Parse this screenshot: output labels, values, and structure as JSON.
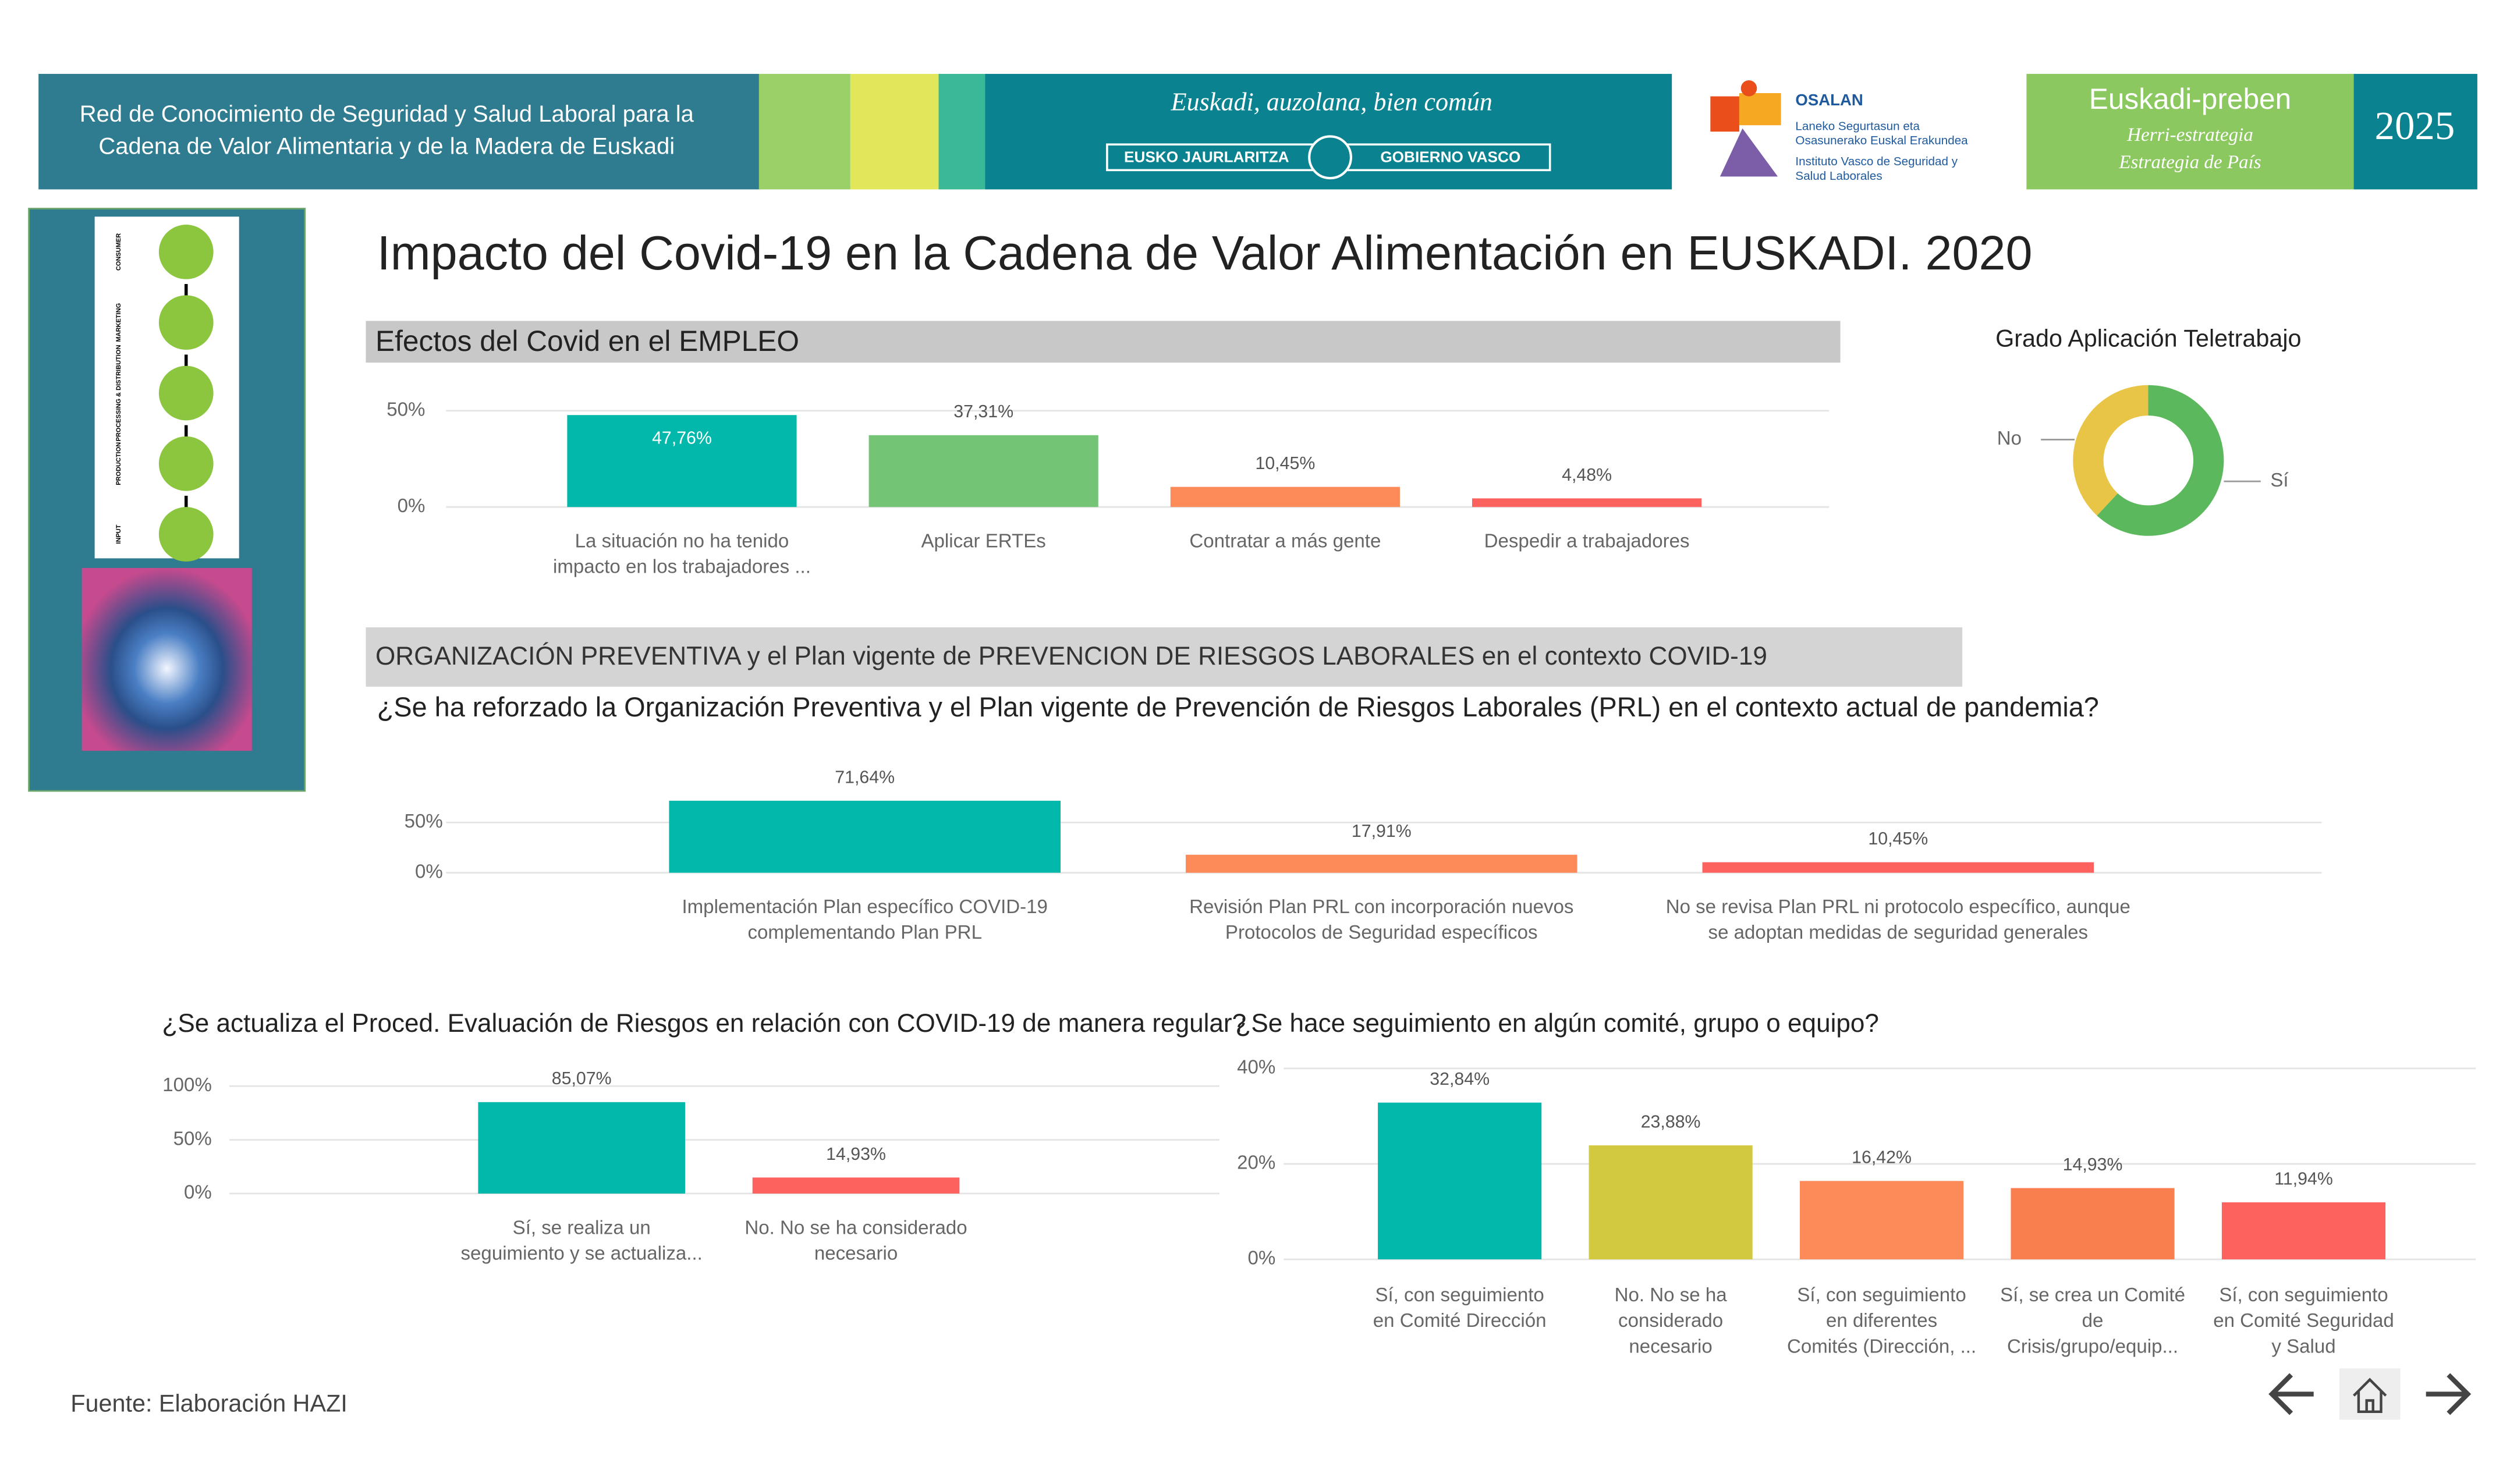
{
  "header": {
    "network_lines": [
      "Red de Conocimiento de Seguridad y Salud Laboral para la",
      "Cadena de Valor Alimentaria y de la Madera de Euskadi"
    ],
    "motto": "Euskadi, auzolana, bien común",
    "gov_left": "EUSKO JAURLARITZA",
    "gov_right": "GOBIERNO VASCO",
    "osalan": "OSALAN",
    "osalan_lines": [
      "Laneko Segurtasun eta",
      "Osasunerako Euskal Erakundea",
      "Instituto Vasco de Seguridad y",
      "Salud Laborales"
    ],
    "strategy": "Euskadi-preben",
    "strategy_lines": [
      "Herri-estrategia",
      "Estrategia de País"
    ],
    "year": "2025"
  },
  "side_image": {
    "stages": [
      "CONSUMER",
      "MARKETING",
      "PROCESSING & DISTRIBUTION",
      "PRODUCTION",
      "INPUT"
    ]
  },
  "title": "Impacto del Covid-19 en la Cadena de Valor Alimentación en EUSKADI. 2020",
  "section_heading": "ORGANIZACIÓN PREVENTIVA y el Plan vigente de PREVENCION DE RIESGOS LABORALES en el contexto COVID-19",
  "footer": "Fuente: Elaboración HAZI",
  "chart_data": [
    {
      "type": "bar",
      "title": "Efectos del Covid en el EMPLEO",
      "categories": [
        [
          "La situación no ha tenido",
          "impacto en los trabajadores ..."
        ],
        [
          "Aplicar ERTEs"
        ],
        [
          "Contratar a más gente"
        ],
        [
          "Despedir a trabajadores"
        ]
      ],
      "values": [
        47.76,
        37.31,
        10.45,
        4.48
      ],
      "value_labels": [
        "47,76%",
        "37,31%",
        "10,45%",
        "4,48%"
      ],
      "colors": [
        "#01b8aa",
        "#74c476",
        "#fd8b5a",
        "#fd625e"
      ],
      "ylim": [
        0,
        50
      ],
      "yticks": [
        {
          "value": 0,
          "label": "0%"
        },
        {
          "value": 50,
          "label": "50%"
        }
      ],
      "grid": true
    },
    {
      "type": "donut",
      "title": "Grado Aplicación Teletrabajo",
      "categories": [
        "No",
        "Sí"
      ],
      "values": [
        38,
        62
      ],
      "colors": [
        "#e8c547",
        "#5cb85c"
      ]
    },
    {
      "type": "bar",
      "title": "¿Se ha reforzado la Organización Preventiva y el Plan vigente de Prevención de Riesgos Laborales (PRL) en el contexto actual de pandemia?",
      "categories": [
        [
          "Implementación Plan específico COVID-19",
          "complementando Plan PRL"
        ],
        [
          "Revisión Plan PRL con incorporación nuevos",
          "Protocolos de Seguridad específicos"
        ],
        [
          "No se revisa Plan PRL ni protocolo específico, aunque",
          "se adoptan medidas de seguridad generales"
        ]
      ],
      "values": [
        71.64,
        17.91,
        10.45
      ],
      "value_labels": [
        "71,64%",
        "17,91%",
        "10,45%"
      ],
      "colors": [
        "#01b8aa",
        "#fd8b5a",
        "#fd625e"
      ],
      "ylim": [
        0,
        75
      ],
      "yticks": [
        {
          "value": 0,
          "label": "0%"
        },
        {
          "value": 50,
          "label": "50%"
        }
      ],
      "grid": true
    },
    {
      "type": "bar",
      "title": "¿Se actualiza el Proced. Evaluación de Riesgos en relación con COVID-19 de manera regular?",
      "categories": [
        [
          "Sí, se realiza un",
          "seguimiento y se actualiza..."
        ],
        [
          "No. No se ha considerado",
          "necesario"
        ]
      ],
      "values": [
        85.07,
        14.93
      ],
      "value_labels": [
        "85,07%",
        "14,93%"
      ],
      "colors": [
        "#01b8aa",
        "#fd625e"
      ],
      "ylim": [
        0,
        100
      ],
      "yticks": [
        {
          "value": 0,
          "label": "0%"
        },
        {
          "value": 50,
          "label": "50%"
        },
        {
          "value": 100,
          "label": "100%"
        }
      ],
      "grid": true
    },
    {
      "type": "bar",
      "title": "¿Se hace seguimiento en algún comité, grupo o equipo?",
      "categories": [
        [
          "Sí, con seguimiento",
          "en Comité Dirección"
        ],
        [
          "No. No se ha",
          "considerado",
          "necesario"
        ],
        [
          "Sí, con seguimiento",
          "en diferentes",
          "Comités (Dirección, ..."
        ],
        [
          "Sí, se crea un Comité",
          "de",
          "Crisis/grupo/equip..."
        ],
        [
          "Sí, con seguimiento",
          "en Comité Seguridad",
          "y Salud"
        ]
      ],
      "values": [
        32.84,
        23.88,
        16.42,
        14.93,
        11.94
      ],
      "value_labels": [
        "32,84%",
        "23,88%",
        "16,42%",
        "14,93%",
        "11,94%"
      ],
      "colors": [
        "#01b8aa",
        "#d2c940",
        "#fd8b5a",
        "#fa7f4f",
        "#fd625e"
      ],
      "ylim": [
        0,
        40
      ],
      "yticks": [
        {
          "value": 0,
          "label": "0%"
        },
        {
          "value": 20,
          "label": "20%"
        },
        {
          "value": 40,
          "label": "40%"
        }
      ],
      "grid": true
    }
  ]
}
